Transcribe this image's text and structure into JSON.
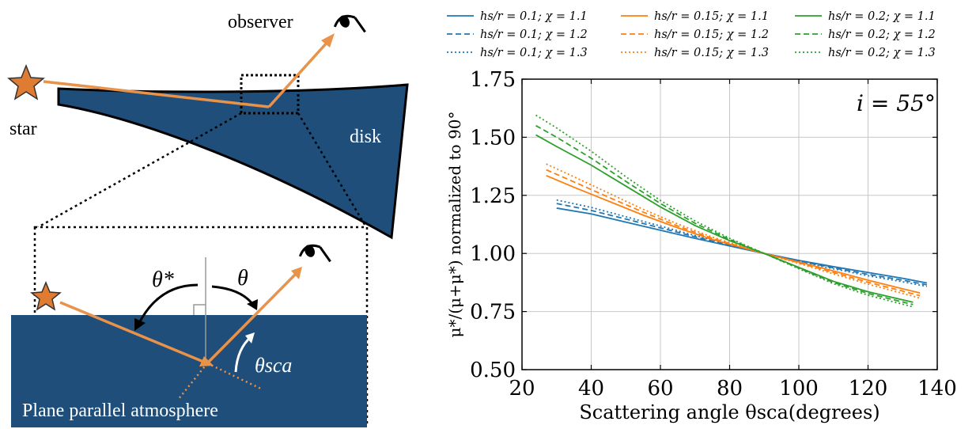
{
  "diagram": {
    "labels": {
      "observer": "observer",
      "star": "star",
      "disk": "disk",
      "atmosphere": "Plane parallel atmosphere",
      "theta_star": "θ*",
      "theta": "θ",
      "theta_sca": "θsca"
    },
    "colors": {
      "disk": "#1f4e7a",
      "ray": "#f0a050",
      "star": "#e08030"
    },
    "icons": [
      "star-icon",
      "eye-icon"
    ]
  },
  "chart_data": {
    "type": "line",
    "xlabel": "Scattering angle θsca(degrees)",
    "ylabel": "μ*/(μ+μ*) normalized to 90°",
    "annotation": "i = 55°",
    "xlim": [
      20,
      140
    ],
    "ylim": [
      0.5,
      1.75
    ],
    "xticks": [
      "20",
      "40",
      "60",
      "80",
      "100",
      "120",
      "140"
    ],
    "yticks": [
      "0.50",
      "0.75",
      "1.00",
      "1.25",
      "1.50",
      "1.75"
    ],
    "grid": true,
    "legend_position": "top",
    "series": [
      {
        "name": "hs/r = 0.1; χ = 1.1",
        "color": "#1f77b4",
        "style": "solid",
        "x": [
          30,
          40,
          50,
          60,
          70,
          80,
          90,
          100,
          110,
          120,
          130,
          137
        ],
        "y": [
          1.195,
          1.17,
          1.135,
          1.1,
          1.065,
          1.032,
          1.0,
          0.97,
          0.943,
          0.918,
          0.893,
          0.873
        ]
      },
      {
        "name": "hs/r = 0.1; χ = 1.2",
        "color": "#1f77b4",
        "style": "dashed",
        "x": [
          30,
          40,
          50,
          60,
          70,
          80,
          90,
          100,
          110,
          120,
          130,
          137
        ],
        "y": [
          1.215,
          1.185,
          1.148,
          1.11,
          1.072,
          1.035,
          1.0,
          0.968,
          0.938,
          0.91,
          0.885,
          0.865
        ]
      },
      {
        "name": "hs/r = 0.1; χ = 1.3",
        "color": "#1f77b4",
        "style": "dotted",
        "x": [
          30,
          40,
          50,
          60,
          70,
          80,
          90,
          100,
          110,
          120,
          130,
          137
        ],
        "y": [
          1.23,
          1.198,
          1.158,
          1.118,
          1.077,
          1.037,
          1.0,
          0.966,
          0.934,
          0.904,
          0.878,
          0.858
        ]
      },
      {
        "name": "hs/r = 0.15; χ = 1.1",
        "color": "#ff7f0e",
        "style": "solid",
        "x": [
          27,
          35,
          45,
          55,
          65,
          75,
          90,
          100,
          110,
          120,
          130,
          135
        ],
        "y": [
          1.335,
          1.285,
          1.225,
          1.165,
          1.11,
          1.06,
          1.0,
          0.963,
          0.925,
          0.885,
          0.848,
          0.83
        ]
      },
      {
        "name": "hs/r = 0.15; χ = 1.2",
        "color": "#ff7f0e",
        "style": "dashed",
        "x": [
          27,
          35,
          45,
          55,
          65,
          75,
          90,
          100,
          110,
          120,
          130,
          135
        ],
        "y": [
          1.36,
          1.308,
          1.242,
          1.178,
          1.118,
          1.065,
          1.0,
          0.96,
          0.918,
          0.876,
          0.838,
          0.818
        ]
      },
      {
        "name": "hs/r = 0.15; χ = 1.3",
        "color": "#ff7f0e",
        "style": "dotted",
        "x": [
          27,
          35,
          45,
          55,
          65,
          75,
          90,
          100,
          110,
          120,
          130,
          135
        ],
        "y": [
          1.385,
          1.33,
          1.26,
          1.19,
          1.127,
          1.07,
          1.0,
          0.957,
          0.912,
          0.868,
          0.828,
          0.808
        ]
      },
      {
        "name": "hs/r = 0.2; χ = 1.1",
        "color": "#2ca02c",
        "style": "solid",
        "x": [
          24,
          30,
          40,
          50,
          60,
          70,
          80,
          90,
          100,
          110,
          120,
          133
        ],
        "y": [
          1.51,
          1.46,
          1.38,
          1.29,
          1.2,
          1.12,
          1.055,
          1.0,
          0.94,
          0.88,
          0.835,
          0.79
        ]
      },
      {
        "name": "hs/r = 0.2; χ = 1.2",
        "color": "#2ca02c",
        "style": "dashed",
        "x": [
          24,
          30,
          40,
          50,
          60,
          70,
          80,
          90,
          100,
          110,
          120,
          133
        ],
        "y": [
          1.55,
          1.5,
          1.41,
          1.31,
          1.215,
          1.13,
          1.06,
          1.0,
          0.937,
          0.875,
          0.828,
          0.78
        ]
      },
      {
        "name": "hs/r = 0.2; χ = 1.3",
        "color": "#2ca02c",
        "style": "dotted",
        "x": [
          24,
          30,
          40,
          50,
          60,
          70,
          80,
          90,
          100,
          110,
          120,
          133
        ],
        "y": [
          1.595,
          1.54,
          1.44,
          1.33,
          1.228,
          1.14,
          1.065,
          1.0,
          0.934,
          0.87,
          0.82,
          0.77
        ]
      }
    ]
  }
}
